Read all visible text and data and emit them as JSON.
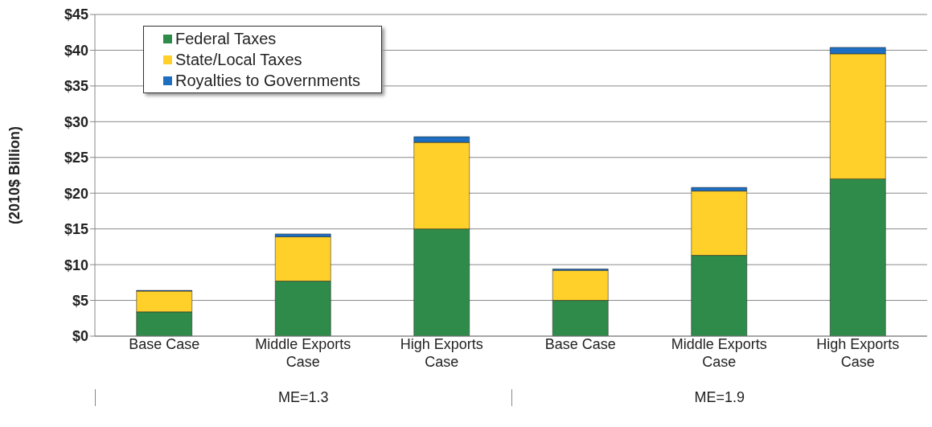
{
  "chart_data": {
    "type": "bar",
    "stacked": true,
    "ylabel": "(2010$ Billion)",
    "categories": [
      "Base Case",
      "Middle Exports Case",
      "High Exports Case",
      "Base Case",
      "Middle Exports Case",
      "High Exports Case"
    ],
    "series": [
      {
        "name": "Federal Taxes",
        "color": "#2e8b4a",
        "values": [
          3.4,
          7.7,
          15.0,
          5.0,
          11.3,
          22.0
        ]
      },
      {
        "name": "State/Local Taxes",
        "color": "#ffd02a",
        "values": [
          2.9,
          6.2,
          12.1,
          4.2,
          9.0,
          17.5
        ]
      },
      {
        "name": "Royalties to Governments",
        "color": "#1f6fc0",
        "values": [
          0.1,
          0.4,
          0.8,
          0.2,
          0.5,
          0.9
        ]
      }
    ],
    "ylim": [
      0,
      45
    ],
    "yticks": [
      {
        "value": 0,
        "label": "$0"
      },
      {
        "value": 5,
        "label": "$5"
      },
      {
        "value": 10,
        "label": "$10"
      },
      {
        "value": 15,
        "label": "$15"
      },
      {
        "value": 20,
        "label": "$20"
      },
      {
        "value": 25,
        "label": "$25"
      },
      {
        "value": 30,
        "label": "$30"
      },
      {
        "value": 35,
        "label": "$35"
      },
      {
        "value": 40,
        "label": "$40"
      },
      {
        "value": 45,
        "label": "$45"
      }
    ],
    "grid": "y",
    "legend": "top left",
    "annotations": [
      "ME=1.3",
      "ME=1.9"
    ]
  }
}
